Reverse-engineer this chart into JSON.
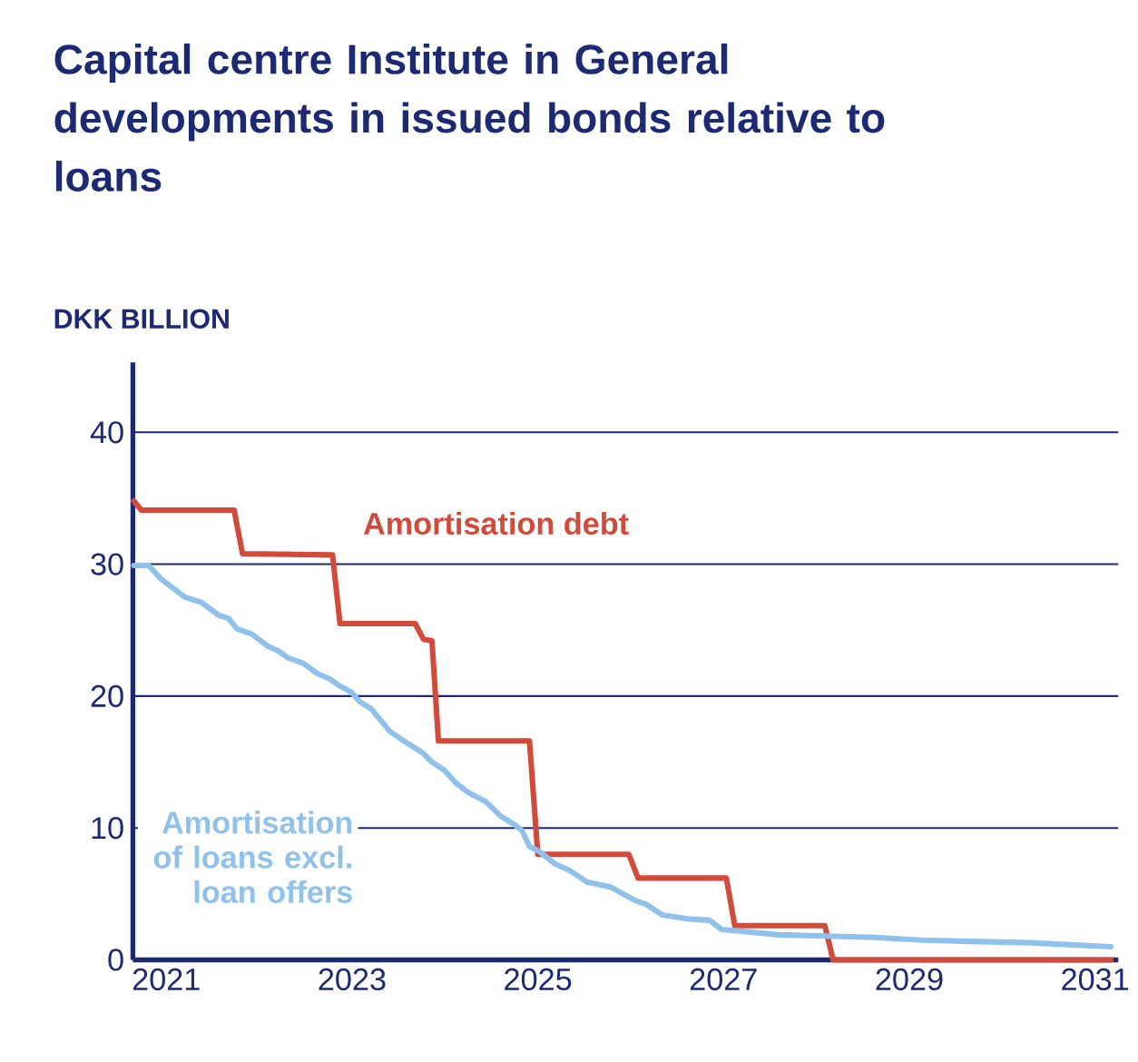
{
  "chart_data": {
    "type": "line",
    "title": "Capital centre Institute in General developments in issued bonds relative to loans",
    "ylabel": "DKK BILLION",
    "xlim": [
      2020.64,
      2031.25
    ],
    "xticks": [
      2021,
      2023,
      2025,
      2027,
      2029,
      2031
    ],
    "ylim": [
      0,
      45.3
    ],
    "yticks": [
      0,
      10,
      20,
      30,
      40
    ],
    "grid": "y",
    "legend": false,
    "marker": "none",
    "line_style": "solid",
    "series": [
      {
        "name": "Amortisation debt",
        "color": "#d24a3a",
        "x": [
          2020.65,
          2020.73,
          2021.73,
          2021.82,
          2022.79,
          2022.87,
          2023.68,
          2023.77,
          2023.86,
          2023.93,
          2024.91,
          2025.0,
          2025.98,
          2026.08,
          2027.03,
          2027.12,
          2028.09,
          2028.18,
          2031.17
        ],
        "values": [
          34.8,
          34.1,
          34.1,
          30.8,
          30.7,
          25.5,
          25.5,
          24.3,
          24.2,
          16.6,
          16.6,
          8,
          8,
          6.2,
          6.2,
          2.6,
          2.6,
          0,
          0
        ]
      },
      {
        "name": "Amortisation of loans excl. loan offers",
        "color": "#8fc1ea",
        "x": [
          2020.65,
          2020.81,
          2020.94,
          2021.2,
          2021.38,
          2021.57,
          2021.67,
          2021.76,
          2021.92,
          2022.09,
          2022.21,
          2022.31,
          2022.47,
          2022.63,
          2022.76,
          2022.86,
          2022.99,
          2023.08,
          2023.21,
          2023.41,
          2023.6,
          2023.76,
          2023.86,
          2023.99,
          2024.12,
          2024.25,
          2024.44,
          2024.6,
          2024.76,
          2024.83,
          2024.91,
          2025.02,
          2025.18,
          2025.34,
          2025.53,
          2025.79,
          2026.05,
          2026.17,
          2026.34,
          2026.63,
          2026.85,
          2026.98,
          2027.59,
          2028.1,
          2028.62,
          2029.14,
          2029.65,
          2030.3,
          2031.17
        ],
        "values": [
          29.9,
          29.9,
          28.9,
          27.5,
          27.1,
          26.1,
          25.9,
          25.1,
          24.7,
          23.8,
          23.4,
          22.9,
          22.5,
          21.7,
          21.3,
          20.8,
          20.3,
          19.6,
          19.0,
          17.3,
          16.4,
          15.7,
          15.0,
          14.4,
          13.4,
          12.7,
          12.0,
          10.9,
          10.2,
          9.8,
          8.6,
          8.2,
          7.3,
          6.8,
          5.9,
          5.5,
          4.5,
          4.2,
          3.4,
          3.1,
          3.0,
          2.3,
          1.9,
          1.8,
          1.7,
          1.5,
          1.4,
          1.3,
          1.0
        ]
      }
    ]
  }
}
